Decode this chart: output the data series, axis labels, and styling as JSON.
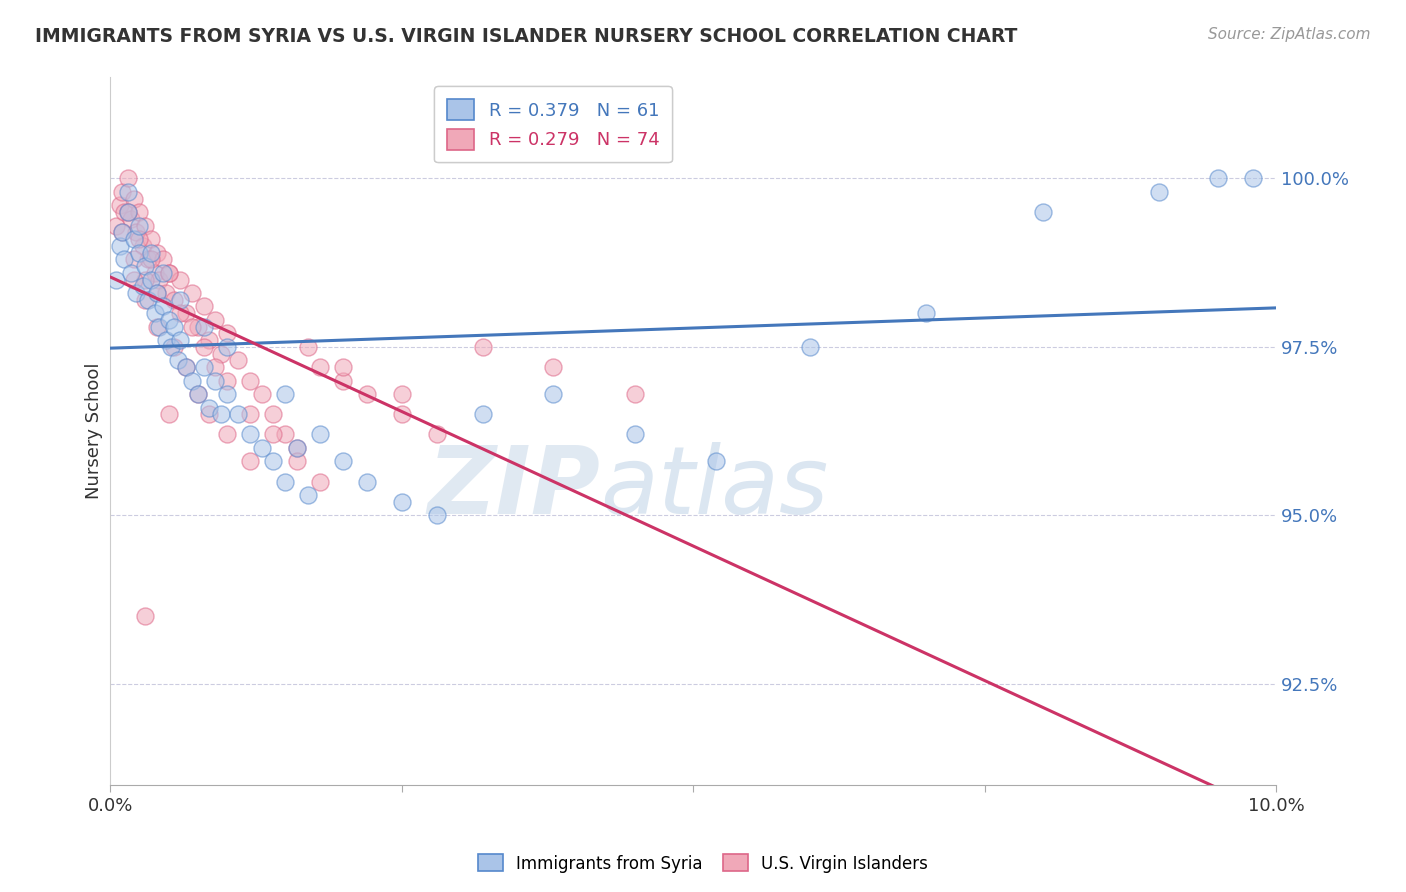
{
  "title": "IMMIGRANTS FROM SYRIA VS U.S. VIRGIN ISLANDER NURSERY SCHOOL CORRELATION CHART",
  "source": "Source: ZipAtlas.com",
  "ylabel": "Nursery School",
  "xlim": [
    0.0,
    10.0
  ],
  "ylim": [
    91.0,
    101.5
  ],
  "yticks": [
    92.5,
    95.0,
    97.5,
    100.0
  ],
  "ytick_labels": [
    "92.5%",
    "95.0%",
    "97.5%",
    "100.0%"
  ],
  "xticks": [
    0.0,
    2.5,
    5.0,
    7.5,
    10.0
  ],
  "xtick_labels": [
    "0.0%",
    "",
    "",
    "",
    "10.0%"
  ],
  "legend_blue_label": "R = 0.379   N = 61",
  "legend_pink_label": "R = 0.279   N = 74",
  "legend_blue_label2": "Immigrants from Syria",
  "legend_pink_label2": "U.S. Virgin Islanders",
  "blue_color": "#aac4e8",
  "pink_color": "#f0a8b8",
  "blue_edge_color": "#5588cc",
  "pink_edge_color": "#dd6688",
  "blue_line_color": "#4477bb",
  "pink_line_color": "#cc3366",
  "watermark_zip": "ZIP",
  "watermark_atlas": "atlas",
  "blue_scatter_x": [
    0.05,
    0.08,
    0.1,
    0.12,
    0.15,
    0.18,
    0.2,
    0.22,
    0.25,
    0.28,
    0.3,
    0.32,
    0.35,
    0.38,
    0.4,
    0.42,
    0.45,
    0.48,
    0.5,
    0.52,
    0.55,
    0.58,
    0.6,
    0.65,
    0.7,
    0.75,
    0.8,
    0.85,
    0.9,
    0.95,
    1.0,
    1.1,
    1.2,
    1.3,
    1.4,
    1.5,
    1.6,
    1.7,
    1.8,
    2.0,
    2.2,
    2.5,
    2.8,
    3.2,
    3.8,
    4.5,
    5.2,
    6.0,
    7.0,
    8.0,
    9.0,
    9.5,
    9.8,
    0.15,
    0.25,
    0.35,
    0.45,
    0.6,
    0.8,
    1.0,
    1.5
  ],
  "blue_scatter_y": [
    98.5,
    99.0,
    99.2,
    98.8,
    99.5,
    98.6,
    99.1,
    98.3,
    98.9,
    98.4,
    98.7,
    98.2,
    98.5,
    98.0,
    98.3,
    97.8,
    98.1,
    97.6,
    97.9,
    97.5,
    97.8,
    97.3,
    97.6,
    97.2,
    97.0,
    96.8,
    97.2,
    96.6,
    97.0,
    96.5,
    96.8,
    96.5,
    96.2,
    96.0,
    95.8,
    95.5,
    96.0,
    95.3,
    96.2,
    95.8,
    95.5,
    95.2,
    95.0,
    96.5,
    96.8,
    96.2,
    95.8,
    97.5,
    98.0,
    99.5,
    99.8,
    100.0,
    100.0,
    99.8,
    99.3,
    98.9,
    98.6,
    98.2,
    97.8,
    97.5,
    96.8
  ],
  "pink_scatter_x": [
    0.05,
    0.08,
    0.1,
    0.12,
    0.15,
    0.18,
    0.2,
    0.22,
    0.25,
    0.28,
    0.3,
    0.32,
    0.35,
    0.38,
    0.4,
    0.42,
    0.45,
    0.48,
    0.5,
    0.55,
    0.6,
    0.65,
    0.7,
    0.75,
    0.8,
    0.85,
    0.9,
    0.95,
    1.0,
    1.1,
    1.2,
    1.3,
    1.4,
    1.5,
    1.6,
    1.7,
    1.8,
    2.0,
    2.2,
    2.5,
    2.8,
    3.2,
    3.8,
    4.5,
    0.1,
    0.15,
    0.2,
    0.25,
    0.3,
    0.35,
    0.4,
    0.5,
    0.6,
    0.7,
    0.8,
    0.9,
    1.0,
    1.2,
    1.4,
    1.6,
    1.8,
    2.0,
    2.5,
    0.2,
    0.3,
    0.4,
    0.55,
    0.65,
    0.75,
    0.85,
    1.0,
    1.2,
    0.5,
    0.3
  ],
  "pink_scatter_y": [
    99.3,
    99.6,
    99.8,
    99.5,
    100.0,
    99.4,
    99.7,
    99.2,
    99.5,
    99.0,
    99.3,
    98.8,
    99.1,
    98.6,
    98.9,
    98.5,
    98.8,
    98.3,
    98.6,
    98.2,
    98.5,
    98.0,
    98.3,
    97.8,
    98.1,
    97.6,
    97.9,
    97.4,
    97.7,
    97.3,
    97.0,
    96.8,
    96.5,
    96.2,
    96.0,
    97.5,
    97.2,
    97.0,
    96.8,
    96.5,
    96.2,
    97.5,
    97.2,
    96.8,
    99.2,
    99.5,
    98.8,
    99.1,
    98.5,
    98.8,
    98.3,
    98.6,
    98.0,
    97.8,
    97.5,
    97.2,
    97.0,
    96.5,
    96.2,
    95.8,
    95.5,
    97.2,
    96.8,
    98.5,
    98.2,
    97.8,
    97.5,
    97.2,
    96.8,
    96.5,
    96.2,
    95.8,
    96.5,
    93.5
  ]
}
